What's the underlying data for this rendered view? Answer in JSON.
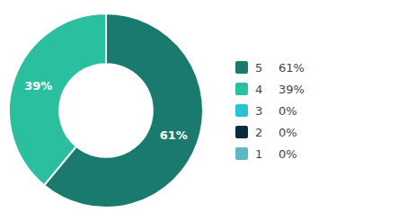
{
  "chart_data": {
    "type": "donut",
    "categories": [
      "5",
      "4",
      "3",
      "2",
      "1"
    ],
    "values": [
      61,
      39,
      0,
      0,
      0
    ],
    "value_labels": [
      "61%",
      "39%",
      "0%",
      "0%",
      "0%"
    ],
    "colors": [
      "#1a7a6e",
      "#2abf9e",
      "#29c4d4",
      "#0d2b3e",
      "#5bb8c4"
    ],
    "data_labels": true,
    "legend": "right"
  }
}
